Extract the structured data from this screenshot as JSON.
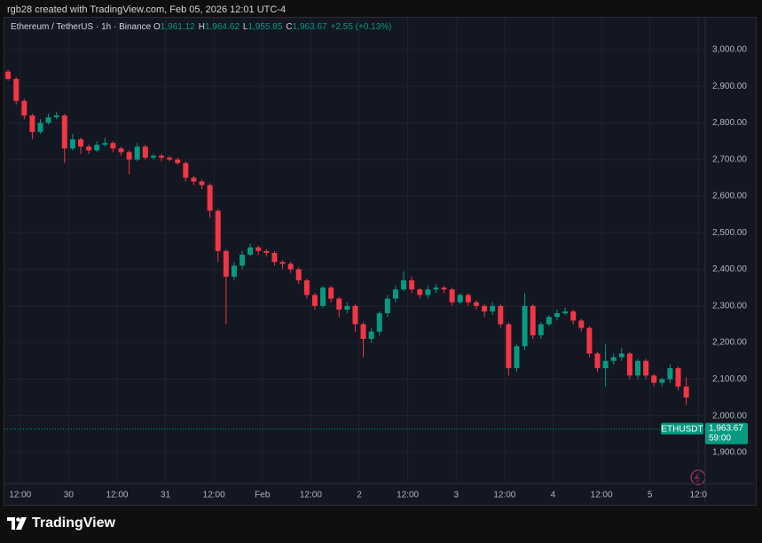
{
  "header": {
    "author": "rgb28 created with TradingView.com, Feb 05, 2026 12:01 UTC-4"
  },
  "footer": {
    "brand": "TradingView"
  },
  "chart_data": {
    "type": "candlestick",
    "title": "Ethereum / TetherUS · 1h · Binance",
    "ohlc_legend": [
      {
        "label": "O",
        "value": "1,961.12"
      },
      {
        "label": "H",
        "value": "1,964.62"
      },
      {
        "label": "L",
        "value": "1,955.85"
      },
      {
        "label": "C",
        "value": "1,963.67"
      }
    ],
    "change": "+2.55 (+0.13%)",
    "up_color": "#089981",
    "down_color": "#f23645",
    "x": [
      0,
      2,
      4,
      6,
      8,
      10,
      12,
      14,
      16,
      18,
      20,
      22,
      24,
      26,
      28,
      30,
      32,
      34,
      36,
      38,
      40,
      42,
      44,
      46,
      48,
      50,
      52,
      54,
      56,
      58,
      60,
      62,
      64,
      66,
      68,
      70,
      72,
      74,
      76,
      78,
      80,
      82,
      84,
      86,
      88,
      90,
      92,
      94,
      96,
      98,
      100,
      102,
      104,
      106,
      108,
      110,
      112,
      114,
      116,
      118,
      120,
      122,
      124,
      126,
      128,
      130,
      132,
      134,
      136,
      138,
      140,
      142,
      144,
      146,
      148,
      150,
      152,
      154,
      156,
      158,
      160,
      162,
      164,
      166,
      168,
      170
    ],
    "open": [
      2940,
      2920,
      2860,
      2820,
      2775,
      2800,
      2815,
      2820,
      2730,
      2755,
      2735,
      2725,
      2740,
      2745,
      2730,
      2720,
      2700,
      2735,
      2705,
      2710,
      2705,
      2700,
      2690,
      2650,
      2640,
      2630,
      2560,
      2450,
      2380,
      2410,
      2440,
      2460,
      2450,
      2445,
      2420,
      2415,
      2400,
      2370,
      2330,
      2300,
      2350,
      2320,
      2290,
      2300,
      2250,
      2210,
      2230,
      2280,
      2320,
      2345,
      2370,
      2345,
      2330,
      2345,
      2350,
      2345,
      2310,
      2330,
      2310,
      2300,
      2285,
      2300,
      2250,
      2130,
      2190,
      2300,
      2220,
      2250,
      2270,
      2280,
      2285,
      2260,
      2240,
      2170,
      2130,
      2150,
      2160,
      2170,
      2110,
      2150,
      2110,
      2090,
      2100,
      2130,
      2080,
      1961.12
    ],
    "high": [
      2945,
      2925,
      2865,
      2825,
      2810,
      2825,
      2830,
      2825,
      2770,
      2760,
      2740,
      2750,
      2760,
      2750,
      2735,
      2725,
      2745,
      2740,
      2715,
      2715,
      2710,
      2705,
      2695,
      2655,
      2645,
      2635,
      2565,
      2455,
      2420,
      2450,
      2470,
      2465,
      2455,
      2450,
      2425,
      2420,
      2405,
      2375,
      2335,
      2355,
      2355,
      2325,
      2310,
      2305,
      2255,
      2240,
      2285,
      2330,
      2355,
      2395,
      2380,
      2350,
      2355,
      2360,
      2355,
      2350,
      2335,
      2335,
      2315,
      2305,
      2310,
      2305,
      2255,
      2195,
      2335,
      2305,
      2255,
      2275,
      2290,
      2295,
      2290,
      2265,
      2245,
      2175,
      2195,
      2170,
      2185,
      2175,
      2155,
      2155,
      2115,
      2105,
      2140,
      2135,
      2105,
      1964.62
    ],
    "low": [
      2915,
      2850,
      2810,
      2755,
      2770,
      2795,
      2810,
      2690,
      2725,
      2715,
      2715,
      2720,
      2735,
      2720,
      2710,
      2660,
      2695,
      2700,
      2700,
      2695,
      2695,
      2685,
      2640,
      2630,
      2620,
      2540,
      2420,
      2250,
      2370,
      2400,
      2435,
      2440,
      2435,
      2410,
      2400,
      2390,
      2360,
      2320,
      2290,
      2295,
      2310,
      2270,
      2280,
      2230,
      2160,
      2200,
      2220,
      2270,
      2310,
      2340,
      2335,
      2320,
      2320,
      2335,
      2335,
      2300,
      2305,
      2300,
      2290,
      2270,
      2275,
      2240,
      2110,
      2120,
      2180,
      2210,
      2210,
      2245,
      2260,
      2275,
      2250,
      2230,
      2160,
      2120,
      2080,
      2140,
      2150,
      2100,
      2100,
      2100,
      2080,
      2080,
      2090,
      2070,
      2030,
      1955.85
    ],
    "close": [
      2920,
      2860,
      2820,
      2775,
      2800,
      2815,
      2820,
      2730,
      2755,
      2735,
      2725,
      2740,
      2745,
      2730,
      2720,
      2700,
      2735,
      2705,
      2710,
      2705,
      2700,
      2690,
      2650,
      2640,
      2630,
      2560,
      2450,
      2380,
      2410,
      2440,
      2460,
      2450,
      2445,
      2420,
      2415,
      2400,
      2370,
      2330,
      2300,
      2350,
      2320,
      2290,
      2300,
      2250,
      2210,
      2230,
      2280,
      2320,
      2345,
      2370,
      2345,
      2330,
      2345,
      2350,
      2345,
      2310,
      2330,
      2310,
      2300,
      2285,
      2300,
      2250,
      2130,
      2190,
      2300,
      2220,
      2250,
      2270,
      2280,
      2285,
      2260,
      2240,
      2170,
      2130,
      2150,
      2160,
      2170,
      2110,
      2150,
      2110,
      2090,
      2100,
      2130,
      2080,
      2050,
      1963.67
    ],
    "xlim": [
      -0.9,
      172.7
    ],
    "xticks": [
      {
        "value": 3,
        "label": "12:00"
      },
      {
        "value": 15,
        "label": "30"
      },
      {
        "value": 27,
        "label": "12:00"
      },
      {
        "value": 39,
        "label": "31"
      },
      {
        "value": 51,
        "label": "12:00"
      },
      {
        "value": 63,
        "label": "Feb"
      },
      {
        "value": 75,
        "label": "12:00"
      },
      {
        "value": 87,
        "label": "2"
      },
      {
        "value": 99,
        "label": "12:00"
      },
      {
        "value": 111,
        "label": "3"
      },
      {
        "value": 123,
        "label": "12:00"
      },
      {
        "value": 135,
        "label": "4"
      },
      {
        "value": 147,
        "label": "12:00"
      },
      {
        "value": 159,
        "label": "5"
      },
      {
        "value": 171,
        "label": "12:0"
      }
    ],
    "ylim": [
      1815,
      3087
    ],
    "yticks": [
      {
        "value": 1900,
        "label": "1,900.00"
      },
      {
        "value": 2000,
        "label": "2,000.00"
      },
      {
        "value": 2100,
        "label": "2,100.00"
      },
      {
        "value": 2200,
        "label": "2,200.00"
      },
      {
        "value": 2300,
        "label": "2,300.00"
      },
      {
        "value": 2400,
        "label": "2,400.00"
      },
      {
        "value": 2500,
        "label": "2,500.00"
      },
      {
        "value": 2600,
        "label": "2,600.00"
      },
      {
        "value": 2700,
        "label": "2,700.00"
      },
      {
        "value": 2800,
        "label": "2,800.00"
      },
      {
        "value": 2900,
        "label": "2,900.00"
      },
      {
        "value": 3000,
        "label": "3,000.00"
      }
    ],
    "grid": true,
    "last_price": {
      "symbol": "ETHUSDT",
      "value": 1963.67,
      "label": "1,963.67",
      "countdown": "59:00",
      "color": "#089981"
    }
  }
}
